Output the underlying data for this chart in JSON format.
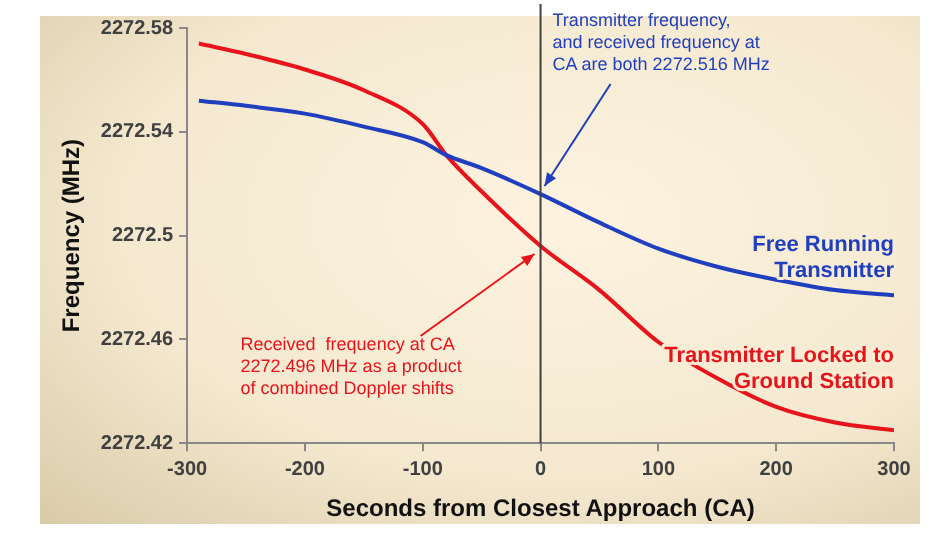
{
  "chart_data": {
    "type": "line",
    "xlabel": "Seconds from Closest Approach (CA)",
    "ylabel": "Frequency (MHz)",
    "xlim": [
      -300,
      300
    ],
    "xticks": [
      -300,
      -200,
      -100,
      0,
      100,
      200,
      300
    ],
    "ylim": [
      2272.42,
      2272.58
    ],
    "yticks": [
      2272.42,
      2272.46,
      2272.5,
      2272.54,
      2272.58
    ],
    "grid": false,
    "legend": false,
    "marker": "none",
    "line_style": "solid",
    "series": [
      {
        "name": "Free Running Transmitter",
        "color": "#1f3fbf",
        "x": [
          -290,
          -250,
          -200,
          -150,
          -100,
          -80,
          -50,
          0,
          50,
          100,
          150,
          200,
          250,
          300
        ],
        "values": [
          2272.552,
          2272.55,
          2272.547,
          2272.542,
          2272.536,
          2272.531,
          2272.526,
          2272.516,
          2272.505,
          2272.495,
          2272.488,
          2272.483,
          2272.479,
          2272.477
        ]
      },
      {
        "name": "Transmitter Locked to Ground Station",
        "color": "#e8141c",
        "x": [
          -290,
          -250,
          -200,
          -150,
          -100,
          -80,
          -50,
          0,
          50,
          100,
          150,
          200,
          250,
          300
        ],
        "values": [
          2272.574,
          2272.57,
          2272.564,
          2272.556,
          2272.543,
          2272.531,
          2272.517,
          2272.496,
          2272.479,
          2272.459,
          2272.445,
          2272.434,
          2272.428,
          2272.425
        ]
      }
    ],
    "ref_lines": [
      {
        "axis": "x",
        "value": 0,
        "color": "#404040"
      }
    ],
    "annotations": [
      {
        "text": "Transmitter frequency,\nand received frequency at\nCA are both 2272.516 MHz",
        "x": 0,
        "y": 2272.516
      },
      {
        "text": "Received  frequency at CA\n2272.496 MHz as a product\nof combined Doppler shifts",
        "x": 0,
        "y": 2272.496
      }
    ]
  }
}
